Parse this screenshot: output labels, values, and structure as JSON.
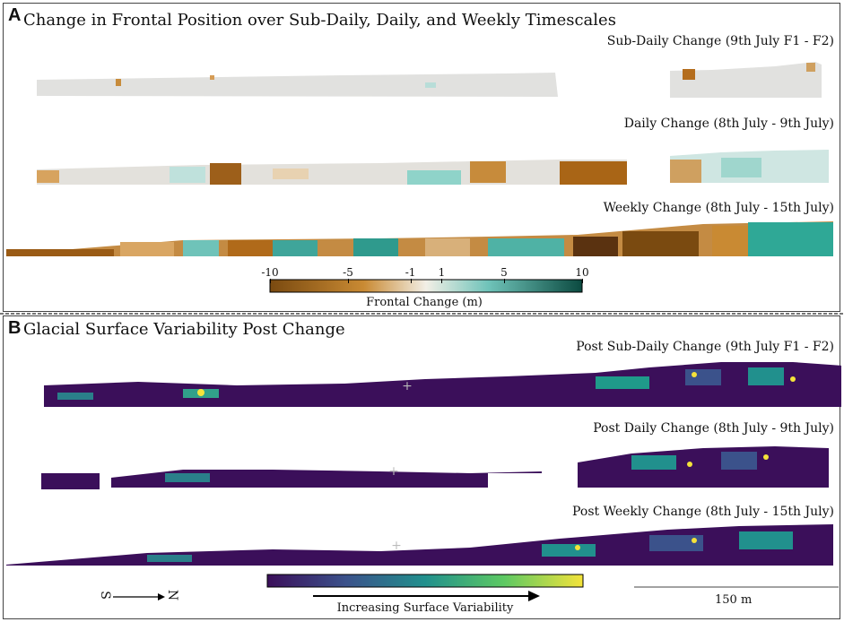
{
  "panel_a": {
    "letter": "A",
    "title": "Change in Frontal Position over Sub-Daily, Daily, and Weekly Timescales",
    "rows": [
      {
        "label": "Sub-Daily Change (9th July F1 - F2)"
      },
      {
        "label": "Daily Change (8th July - 9th July)"
      },
      {
        "label": "Weekly  Change (8th July - 15th July)"
      }
    ],
    "colorbar": {
      "ticks": [
        "-10",
        "-5",
        "-1",
        "1",
        "5",
        "10"
      ],
      "tick_values": [
        -10,
        -5,
        -1,
        1,
        5,
        10
      ],
      "range": [
        -10,
        10
      ],
      "title": "Frontal Change (m)",
      "colors": {
        "negative": "#7a4a10",
        "mid_neg": "#c98a33",
        "center": "#f2efe6",
        "mid_pos": "#6fc3b9",
        "positive": "#0b4a40"
      }
    }
  },
  "panel_b": {
    "letter": "B",
    "title": "Glacial Surface Variability Post Change",
    "rows": [
      {
        "label": "Post Sub-Daily Change (9th July F1 - F2)"
      },
      {
        "label": "Post Daily Change (8th July - 9th July)"
      },
      {
        "label": "Post Weekly Change (8th July - 15th July)"
      }
    ],
    "colorbar": {
      "arrow_label": "Increasing Surface Variability",
      "colors": {
        "low": "#3b0f5a",
        "mid": "#21908d",
        "high": "#f4e33a"
      }
    },
    "north_arrow": {
      "start": "S",
      "end": "N"
    },
    "scale_bar": {
      "label": "150 m"
    }
  }
}
